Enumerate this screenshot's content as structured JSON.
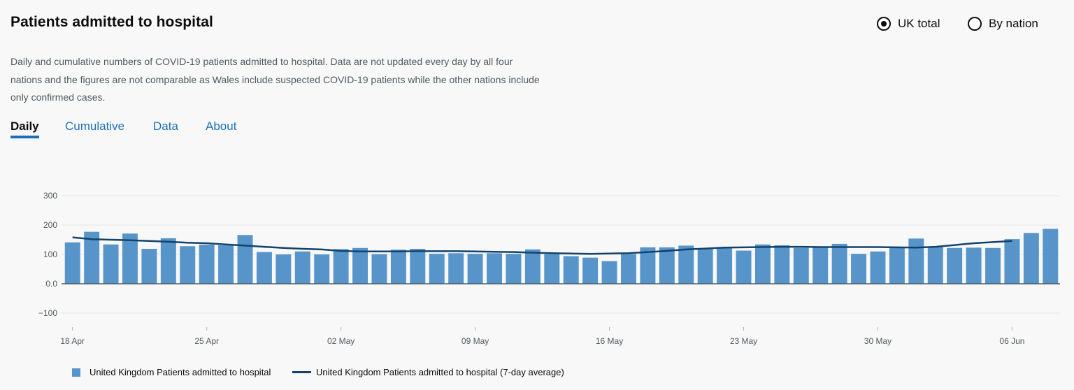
{
  "header": {
    "title": "Patients admitted to hospital"
  },
  "radios": [
    {
      "label": "UK total",
      "selected": true
    },
    {
      "label": "By nation",
      "selected": false
    }
  ],
  "description": "Daily and cumulative numbers of COVID-19 patients admitted to hospital. Data are not updated every day by all four nations and the figures are not comparable as Wales include suspected COVID-19 patients while the other nations include only confirmed cases.",
  "tabs": [
    {
      "label": "Daily",
      "active": true
    },
    {
      "label": "Cumulative",
      "active": false
    },
    {
      "label": "Data",
      "active": false
    },
    {
      "label": "About",
      "active": false
    }
  ],
  "colors": {
    "bar": "#5694ca",
    "line": "#12436d",
    "link": "#1d70b8"
  },
  "chart_data": {
    "type": "bar",
    "x_start": "18 Apr",
    "x_ticks": [
      "18 Apr",
      "25 Apr",
      "02 May",
      "09 May",
      "16 May",
      "23 May",
      "30 May",
      "06 Jun"
    ],
    "y_ticks": [
      "300",
      "200",
      "100",
      "0.0",
      "−100"
    ],
    "ylim": [
      -100,
      300
    ],
    "grid": true,
    "legend_position": "bottom-left",
    "series": [
      {
        "name": "United Kingdom Patients admitted to hospital",
        "type": "bar",
        "values": [
          141,
          177,
          134,
          171,
          119,
          155,
          128,
          133,
          131,
          166,
          108,
          100,
          110,
          100,
          118,
          122,
          101,
          116,
          119,
          102,
          104,
          102,
          104,
          102,
          117,
          101,
          94,
          89,
          77,
          101,
          124,
          124,
          130,
          119,
          123,
          113,
          134,
          131,
          122,
          123,
          136,
          102,
          110,
          122,
          154,
          126,
          122,
          123,
          122,
          152,
          173,
          187
        ]
      },
      {
        "name": "United Kingdom Patients admitted to hospital (7-day average)",
        "type": "line",
        "values": [
          158,
          152,
          150,
          148,
          146,
          143,
          140,
          138,
          134,
          130,
          126,
          122,
          119,
          117,
          112,
          110,
          110,
          110,
          111,
          111,
          111,
          110,
          109,
          108,
          106,
          104,
          103,
          102,
          103,
          104,
          108,
          112,
          117,
          120,
          123,
          124,
          125,
          126,
          126,
          125,
          125,
          125,
          125,
          124,
          123,
          126,
          132,
          138,
          142,
          146,
          null,
          null
        ]
      }
    ]
  }
}
